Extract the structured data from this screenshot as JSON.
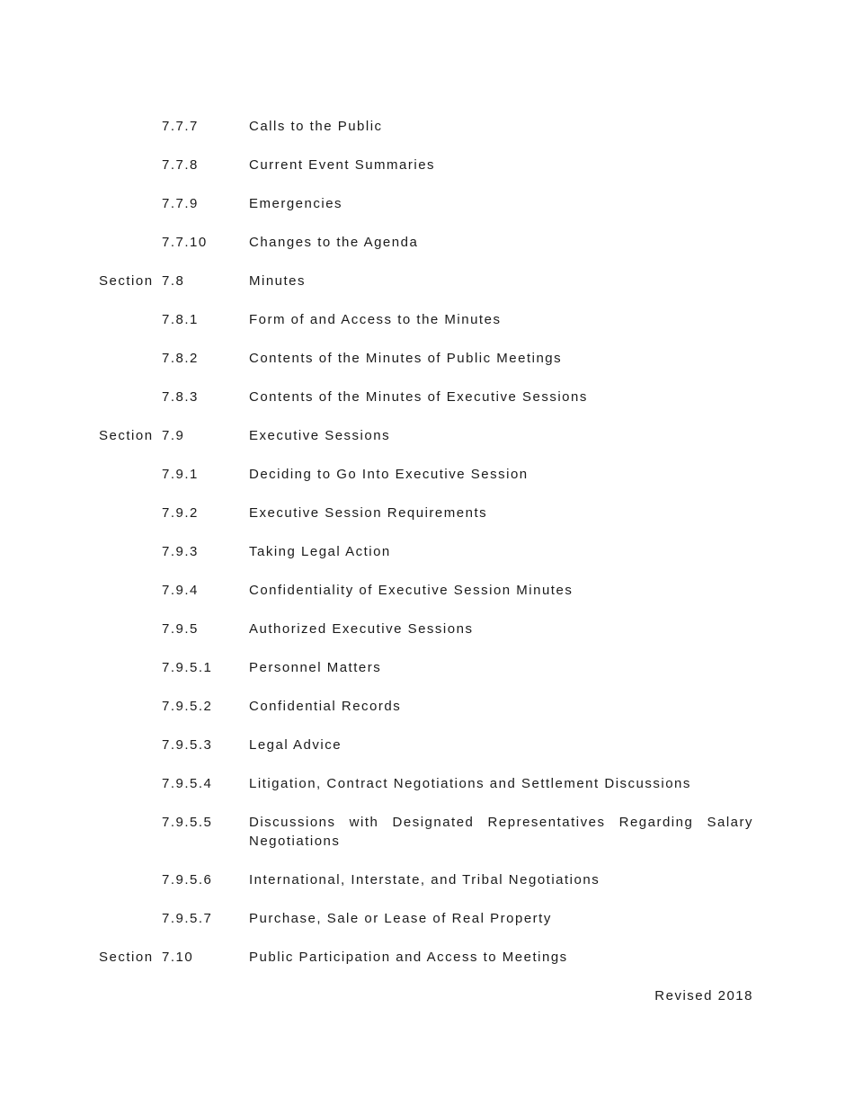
{
  "toc": {
    "entries": [
      {
        "label": "",
        "number": "7.7.7",
        "title": "Calls to the Public"
      },
      {
        "label": "",
        "number": "7.7.8",
        "title": "Current Event Summaries"
      },
      {
        "label": "",
        "number": "7.7.9",
        "title": "Emergencies"
      },
      {
        "label": "",
        "number": "7.7.10",
        "title": "Changes to the Agenda"
      },
      {
        "label": "Section",
        "number": "7.8",
        "title": "Minutes"
      },
      {
        "label": "",
        "number": "7.8.1",
        "title": "Form of and Access to the Minutes"
      },
      {
        "label": "",
        "number": "7.8.2",
        "title": "Contents of the Minutes of Public Meetings"
      },
      {
        "label": "",
        "number": "7.8.3",
        "title": "Contents of the Minutes of Executive Sessions"
      },
      {
        "label": "Section",
        "number": "7.9",
        "title": "Executive Sessions"
      },
      {
        "label": "",
        "number": "7.9.1",
        "title": "Deciding to Go Into Executive Session"
      },
      {
        "label": "",
        "number": "7.9.2",
        "title": "Executive Session Requirements"
      },
      {
        "label": "",
        "number": "7.9.3",
        "title": "Taking Legal Action"
      },
      {
        "label": "",
        "number": "7.9.4",
        "title": "Confidentiality of Executive Session Minutes"
      },
      {
        "label": "",
        "number": "7.9.5",
        "title": "Authorized Executive Sessions"
      },
      {
        "label": "",
        "number": "7.9.5.1",
        "title": "Personnel Matters"
      },
      {
        "label": "",
        "number": "7.9.5.2",
        "title": "Confidential Records"
      },
      {
        "label": "",
        "number": "7.9.5.3",
        "title": "Legal Advice"
      },
      {
        "label": "",
        "number": "7.9.5.4",
        "title": "Litigation, Contract Negotiations and Settlement Discussions"
      },
      {
        "label": "",
        "number": "7.9.5.5",
        "title": "Discussions with Designated Representatives Regarding Salary Negotiations",
        "justified": true
      },
      {
        "label": "",
        "number": "7.9.5.6",
        "title": "International, Interstate, and Tribal Negotiations"
      },
      {
        "label": "",
        "number": "7.9.5.7",
        "title": "Purchase, Sale or Lease of Real Property"
      },
      {
        "label": "Section",
        "number": "7.10",
        "title": "Public Participation and Access to Meetings"
      }
    ]
  },
  "footer": {
    "revision_note": "Revised 2018"
  },
  "colors": {
    "page_background": "#ffffff",
    "text": "#1a1a1a"
  }
}
